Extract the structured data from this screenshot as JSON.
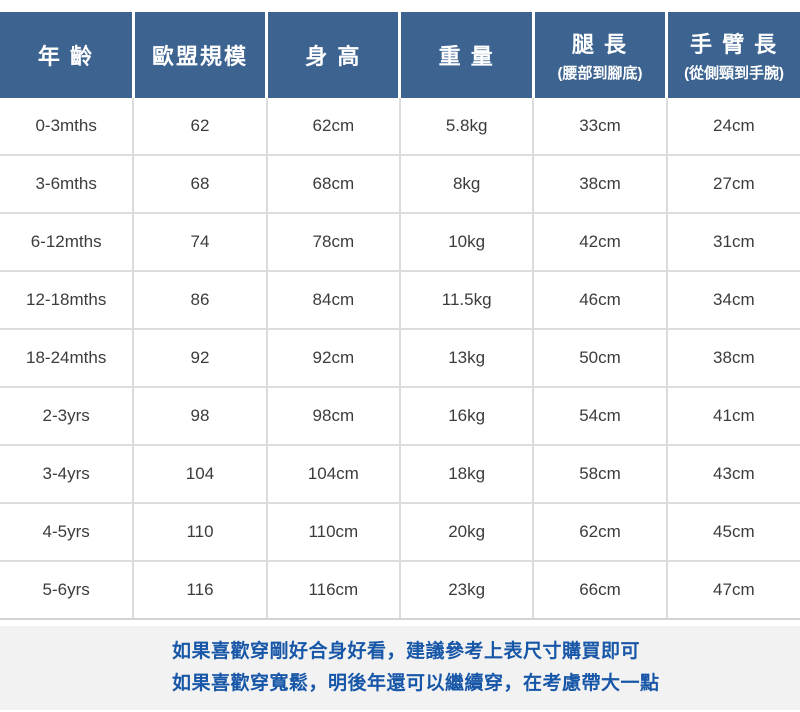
{
  "chart_data": {
    "type": "table",
    "columns": [
      {
        "label": "年 齡",
        "subtitle": ""
      },
      {
        "label": "歐盟規模",
        "subtitle": ""
      },
      {
        "label": "身 高",
        "subtitle": ""
      },
      {
        "label": "重 量",
        "subtitle": ""
      },
      {
        "label": "腿 長",
        "subtitle": "(腰部到腳底)"
      },
      {
        "label": "手 臂 長",
        "subtitle": "(從側頸到手腕)"
      }
    ],
    "rows": [
      [
        "0-3mths",
        "62",
        "62cm",
        "5.8kg",
        "33cm",
        "24cm"
      ],
      [
        "3-6mths",
        "68",
        "68cm",
        "8kg",
        "38cm",
        "27cm"
      ],
      [
        "6-12mths",
        "74",
        "78cm",
        "10kg",
        "42cm",
        "31cm"
      ],
      [
        "12-18mths",
        "86",
        "84cm",
        "11.5kg",
        "46cm",
        "34cm"
      ],
      [
        "18-24mths",
        "92",
        "92cm",
        "13kg",
        "50cm",
        "38cm"
      ],
      [
        "2-3yrs",
        "98",
        "98cm",
        "16kg",
        "54cm",
        "41cm"
      ],
      [
        "3-4yrs",
        "104",
        "104cm",
        "18kg",
        "58cm",
        "43cm"
      ],
      [
        "4-5yrs",
        "110",
        "110cm",
        "20kg",
        "62cm",
        "45cm"
      ],
      [
        "5-6yrs",
        "116",
        "116cm",
        "23kg",
        "66cm",
        "47cm"
      ]
    ]
  },
  "note": {
    "line1": "如果喜歡穿剛好合身好看，建議參考上表尺寸購買即可",
    "line2": "如果喜歡穿寬鬆，明後年還可以繼續穿，在考慮帶大一點"
  },
  "colors": {
    "header_bg": "#3d6491",
    "header_text": "#ffffff",
    "grid_line": "#dcdcdc",
    "body_text": "#3c3c3c",
    "note_bg": "#f2f2f2",
    "note_text": "#1857a8"
  }
}
